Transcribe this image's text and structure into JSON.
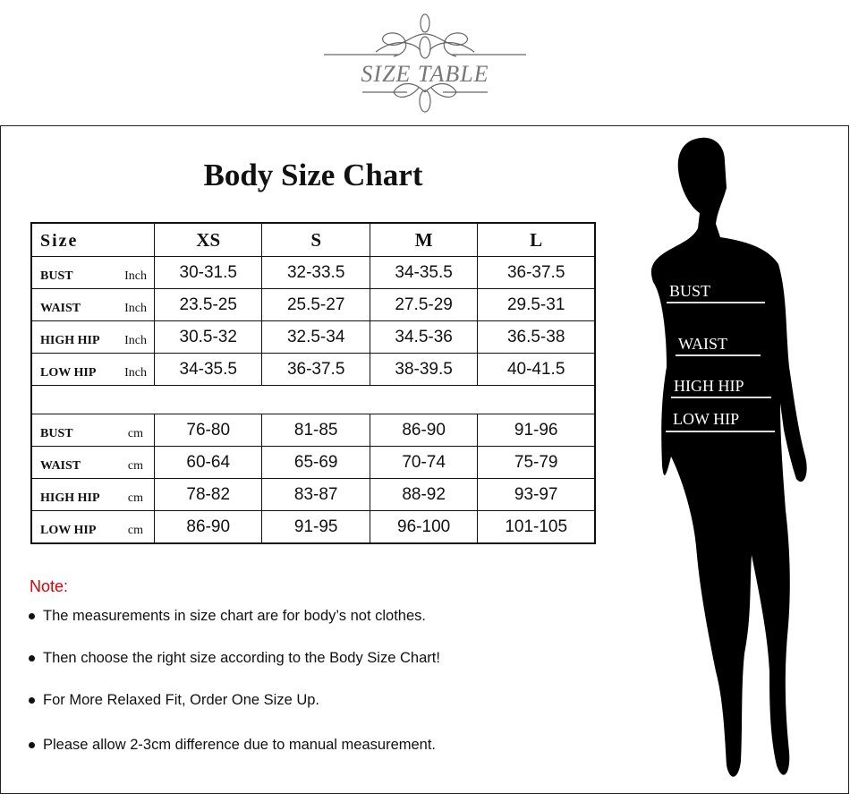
{
  "logo": {
    "text": "SIZE TABLE"
  },
  "title": "Body Size Chart",
  "table": {
    "header": {
      "label": "Size",
      "sizes": [
        "XS",
        "S",
        "M",
        "L"
      ]
    },
    "inch_rows": [
      {
        "name": "BUST",
        "unit": "Inch",
        "values": [
          "30-31.5",
          "32-33.5",
          "34-35.5",
          "36-37.5"
        ]
      },
      {
        "name": "WAIST",
        "unit": "Inch",
        "values": [
          "23.5-25",
          "25.5-27",
          "27.5-29",
          "29.5-31"
        ]
      },
      {
        "name": "HIGH HIP",
        "unit": "Inch",
        "values": [
          "30.5-32",
          "32.5-34",
          "34.5-36",
          "36.5-38"
        ]
      },
      {
        "name": "LOW HIP",
        "unit": "Inch",
        "values": [
          "34-35.5",
          "36-37.5",
          "38-39.5",
          "40-41.5"
        ]
      }
    ],
    "cm_rows": [
      {
        "name": "BUST",
        "unit": "cm",
        "values": [
          "76-80",
          "81-85",
          "86-90",
          "91-96"
        ]
      },
      {
        "name": "WAIST",
        "unit": "cm",
        "values": [
          "60-64",
          "65-69",
          "70-74",
          "75-79"
        ]
      },
      {
        "name": "HIGH HIP",
        "unit": "cm",
        "values": [
          "78-82",
          "83-87",
          "88-92",
          "93-97"
        ]
      },
      {
        "name": "LOW HIP",
        "unit": "cm",
        "values": [
          "86-90",
          "91-95",
          "96-100",
          "101-105"
        ]
      }
    ]
  },
  "note": {
    "heading": "Note:",
    "heading_color": "#e00000",
    "items": [
      "The measurements in size chart are for body’s not clothes.",
      "Then choose the right size according to the Body Size Chart!",
      "For More Relaxed Fit, Order One Size Up.",
      "Please allow 2-3cm difference due to manual measurement."
    ]
  },
  "figure": {
    "labels": [
      "BUST",
      "WAIST",
      "HIGH HIP",
      "LOW HIP"
    ]
  }
}
